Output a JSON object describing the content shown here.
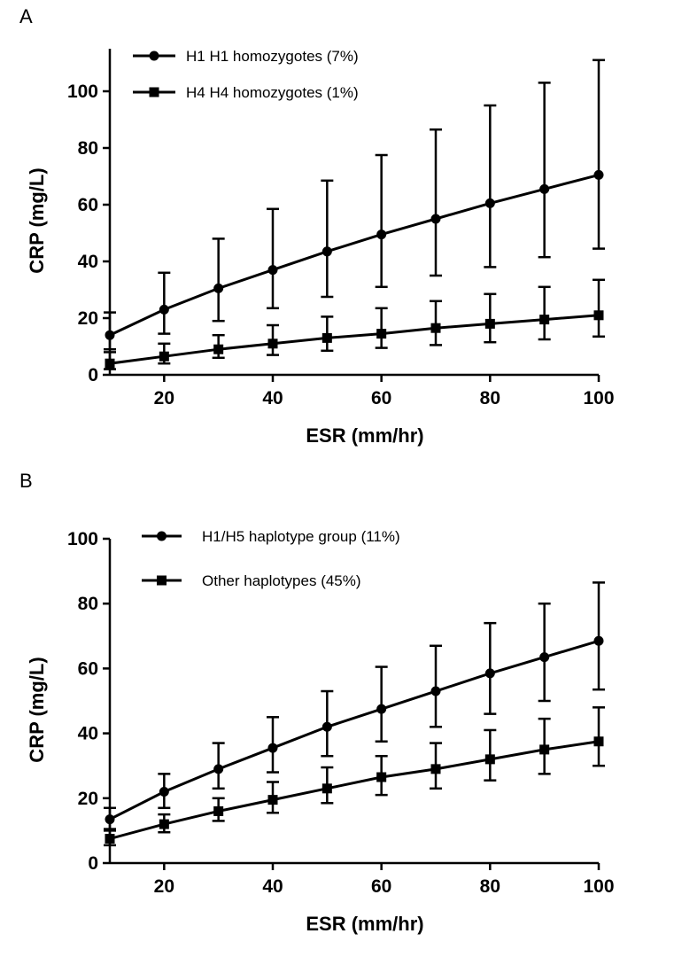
{
  "chart_data": [
    {
      "panel": "A",
      "type": "line",
      "xlabel": "ESR (mm/hr)",
      "ylabel": "CRP (mg/L)",
      "xlim": [
        10,
        100
      ],
      "ylim": [
        0,
        115
      ],
      "xticks": [
        20,
        40,
        60,
        80,
        100
      ],
      "yticks": [
        0,
        20,
        40,
        60,
        80,
        100
      ],
      "legend_placement": "top-left",
      "x": [
        10,
        20,
        30,
        40,
        50,
        60,
        70,
        80,
        90,
        100
      ],
      "series": [
        {
          "name": "H1 H1 homozygotes (7%)",
          "marker": "circle",
          "values": [
            14,
            23,
            30.5,
            37,
            43.5,
            49.5,
            55,
            60.5,
            65.5,
            70.5
          ],
          "upper": [
            22,
            36,
            48,
            58.5,
            68.5,
            77.5,
            86.5,
            95,
            103,
            111
          ],
          "lower": [
            9,
            14.5,
            19,
            23.5,
            27.5,
            31,
            35,
            38,
            41.5,
            44.5
          ]
        },
        {
          "name": "H4 H4 homozygotes (1%)",
          "marker": "square",
          "values": [
            4,
            6.5,
            9,
            11,
            13,
            14.5,
            16.5,
            18,
            19.5,
            21
          ],
          "upper": [
            8,
            11,
            14,
            17.5,
            20.5,
            23.5,
            26,
            28.5,
            31,
            33.5
          ],
          "lower": [
            2,
            4,
            6,
            7,
            8.5,
            9.5,
            10.5,
            11.5,
            12.5,
            13.5
          ]
        }
      ]
    },
    {
      "panel": "B",
      "type": "line",
      "xlabel": "ESR (mm/hr)",
      "ylabel": "CRP (mg/L)",
      "xlim": [
        10,
        100
      ],
      "ylim": [
        0,
        100
      ],
      "xticks": [
        20,
        40,
        60,
        80,
        100
      ],
      "yticks": [
        0,
        20,
        40,
        60,
        80,
        100
      ],
      "legend_placement": "top-left",
      "x": [
        10,
        20,
        30,
        40,
        50,
        60,
        70,
        80,
        90,
        100
      ],
      "series": [
        {
          "name": "H1/H5 haplotype group (11%)",
          "marker": "circle",
          "values": [
            13.5,
            22,
            29,
            35.5,
            42,
            47.5,
            53,
            58.5,
            63.5,
            68.5
          ],
          "upper": [
            17,
            27.5,
            37,
            45,
            53,
            60.5,
            67,
            74,
            80,
            86.5
          ],
          "lower": [
            10.5,
            17,
            23,
            28,
            33,
            37.5,
            42,
            46,
            50,
            53.5
          ]
        },
        {
          "name": "Other haplotypes (45%)",
          "marker": "square",
          "values": [
            7.5,
            12,
            16,
            19.5,
            23,
            26.5,
            29,
            32,
            35,
            37.5
          ],
          "upper": [
            10,
            15,
            20,
            25,
            29.5,
            33,
            37,
            41,
            44.5,
            48
          ],
          "lower": [
            5.5,
            9.5,
            13,
            15.5,
            18.5,
            21,
            23,
            25.5,
            27.5,
            30
          ]
        }
      ]
    }
  ],
  "panels": {
    "a_label": "A",
    "b_label": "B"
  }
}
